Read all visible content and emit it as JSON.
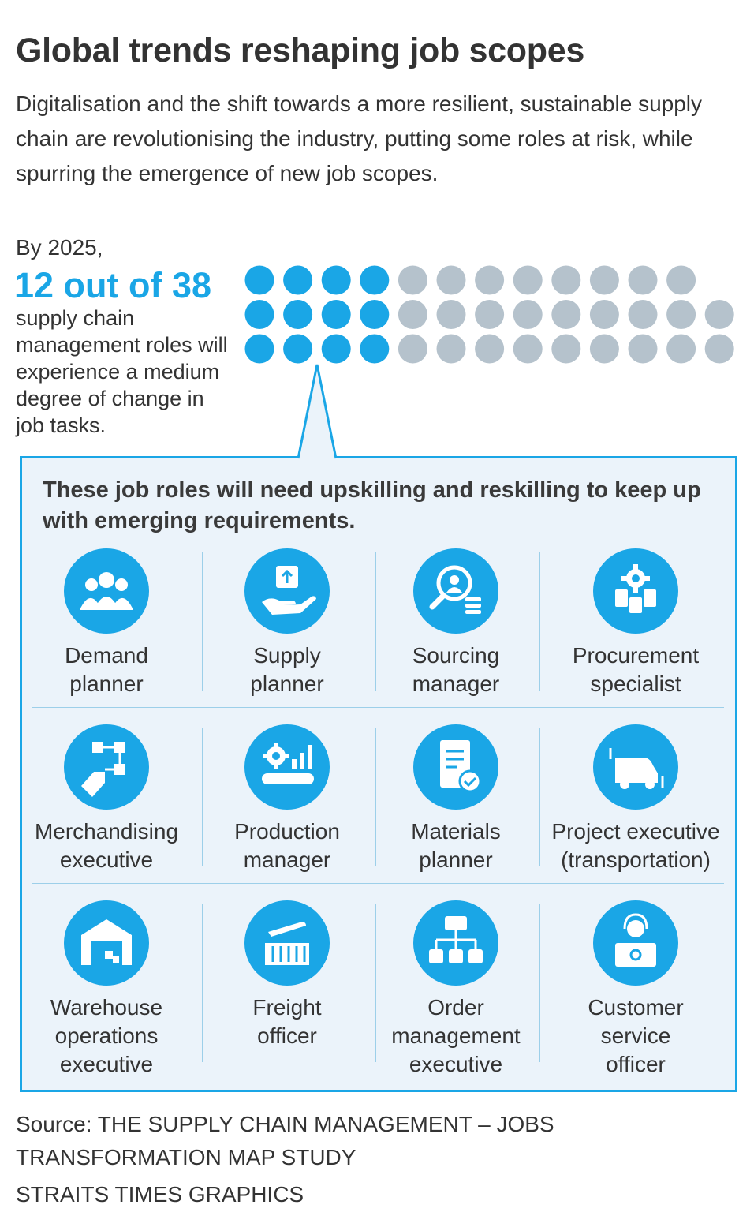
{
  "title": "Global trends reshaping job scopes",
  "subtitle": "Digitalisation and the shift towards a more resilient, sustainable supply chain are revolutionising the industry, putting some roles at risk, while spurring the emergence of new job scopes.",
  "stat": {
    "intro": "By 2025,",
    "headline": "12 out of 38",
    "description": "supply chain management roles will experience a medium degree of change in job tasks.",
    "highlighted_count": 12,
    "total_count": 38
  },
  "colors": {
    "accent": "#1aa6e6",
    "dot_inactive": "#b5c2cc",
    "panel_bg": "#ebf3fa"
  },
  "panel": {
    "heading": "These job roles will need upskilling and reskilling to keep up with emerging requirements.",
    "roles": [
      {
        "line1": "Demand",
        "line2": "planner",
        "line3": "",
        "icon": "people-group-icon"
      },
      {
        "line1": "Supply",
        "line2": "planner",
        "line3": "",
        "icon": "hand-box-icon"
      },
      {
        "line1": "Sourcing",
        "line2": "manager",
        "line3": "",
        "icon": "magnifier-person-icon"
      },
      {
        "line1": "Procurement",
        "line2": "specialist",
        "line3": "",
        "icon": "gear-documents-icon"
      },
      {
        "line1": "Merchandising",
        "line2": "executive",
        "line3": "",
        "icon": "flowchart-tag-icon"
      },
      {
        "line1": "Production",
        "line2": "manager",
        "line3": "",
        "icon": "gear-conveyor-icon"
      },
      {
        "line1": "Materials",
        "line2": "planner",
        "line3": "",
        "icon": "notebook-check-icon"
      },
      {
        "line1": "Project executive",
        "line2": "(transportation)",
        "line3": "",
        "icon": "truck-arrows-icon"
      },
      {
        "line1": "Warehouse",
        "line2": "operations",
        "line3": "executive",
        "icon": "warehouse-icon"
      },
      {
        "line1": "Freight",
        "line2": "officer",
        "line3": "",
        "icon": "plane-container-icon"
      },
      {
        "line1": "Order",
        "line2": "management",
        "line3": "executive",
        "icon": "hierarchy-icon"
      },
      {
        "line1": "Customer",
        "line2": "service",
        "line3": "officer",
        "icon": "headset-agent-icon"
      }
    ]
  },
  "source": "Source: THE SUPPLY CHAIN MANAGEMENT – JOBS TRANSFORMATION MAP STUDY",
  "credit": "STRAITS TIMES GRAPHICS"
}
